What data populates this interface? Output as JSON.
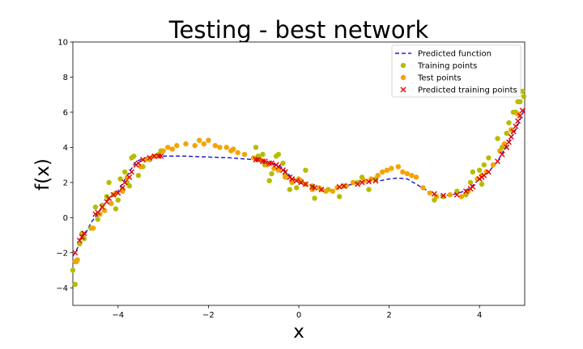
{
  "chart_data": {
    "type": "scatter",
    "title": "Testing - best network",
    "xlabel": "x",
    "ylabel": "f(x)",
    "xlim": [
      -5,
      5
    ],
    "ylim": [
      -5,
      10
    ],
    "xticks": [
      -4,
      -2,
      0,
      2,
      4
    ],
    "yticks": [
      -4,
      -2,
      0,
      2,
      4,
      6,
      8,
      10
    ],
    "xtick_labels": [
      "−4",
      "−2",
      "0",
      "2",
      "4"
    ],
    "ytick_labels": [
      "−4",
      "−2",
      "0",
      "2",
      "4",
      "6",
      "8",
      "10"
    ],
    "grid": false,
    "legend_position": "top-right",
    "series": [
      {
        "name": "Predicted function",
        "kind": "dashed-line",
        "color": "#1f1fd6",
        "x": [
          -5.0,
          -4.8,
          -4.6,
          -4.4,
          -4.2,
          -4.0,
          -3.8,
          -3.6,
          -3.4,
          -3.2,
          -3.0,
          -2.5,
          -2.0,
          -1.5,
          -1.0,
          -0.8,
          -0.6,
          -0.4,
          -0.2,
          0.0,
          0.2,
          0.4,
          0.6,
          0.8,
          1.0,
          1.2,
          1.4,
          1.6,
          1.8,
          2.0,
          2.2,
          2.4,
          2.6,
          2.8,
          3.0,
          3.2,
          3.4,
          3.6,
          3.8,
          4.0,
          4.2,
          4.4,
          4.6,
          4.8,
          5.0
        ],
        "y": [
          -2.2,
          -1.3,
          -0.3,
          0.4,
          1.1,
          1.5,
          2.4,
          3.2,
          3.4,
          3.5,
          3.5,
          3.5,
          3.45,
          3.4,
          3.3,
          3.2,
          3.1,
          2.9,
          2.4,
          2.0,
          1.8,
          1.7,
          1.55,
          1.6,
          1.8,
          1.9,
          2.0,
          2.05,
          2.1,
          2.2,
          2.25,
          2.2,
          1.9,
          1.6,
          1.3,
          1.25,
          1.3,
          1.45,
          1.7,
          2.2,
          2.6,
          3.2,
          4.1,
          5.0,
          6.2
        ]
      },
      {
        "name": "Training points",
        "kind": "scatter",
        "color": "#b5bd00",
        "x": [
          -5.0,
          -4.95,
          -4.92,
          -4.85,
          -4.8,
          -4.75,
          -4.6,
          -4.5,
          -4.45,
          -4.35,
          -4.25,
          -4.2,
          -4.1,
          -4.05,
          -4.0,
          -3.95,
          -3.9,
          -3.85,
          -3.8,
          -3.75,
          -3.7,
          -3.65,
          -3.55,
          -3.45,
          -3.3,
          -3.1,
          -3.05,
          -0.95,
          -0.9,
          -0.8,
          -0.75,
          -0.65,
          -0.6,
          -0.5,
          -0.45,
          -0.35,
          -0.3,
          -0.2,
          -0.15,
          -0.05,
          0.05,
          0.15,
          0.3,
          0.35,
          0.5,
          0.65,
          0.9,
          1.0,
          1.3,
          1.4,
          1.55,
          1.7,
          3.0,
          3.2,
          3.5,
          3.7,
          3.8,
          3.85,
          4.0,
          4.05,
          4.1,
          4.2,
          4.4,
          4.5,
          4.6,
          4.65,
          4.7,
          4.75,
          4.8,
          4.85,
          4.9,
          4.95
        ],
        "y": [
          -3.0,
          -3.8,
          -2.5,
          -1.5,
          -0.9,
          -1.2,
          -0.6,
          0.6,
          -0.1,
          0.7,
          1.2,
          2.0,
          1.3,
          0.5,
          1.0,
          2.2,
          1.6,
          2.6,
          2.0,
          1.8,
          3.4,
          3.5,
          2.4,
          2.9,
          3.3,
          3.6,
          3.8,
          4.0,
          3.5,
          3.6,
          3.0,
          2.1,
          2.5,
          3.5,
          3.6,
          3.1,
          2.4,
          1.6,
          2.0,
          1.7,
          2.1,
          2.7,
          1.8,
          1.1,
          1.6,
          1.6,
          1.2,
          1.8,
          2.0,
          2.3,
          1.6,
          2.2,
          1.0,
          1.2,
          1.5,
          1.3,
          2.0,
          2.6,
          2.7,
          1.9,
          3.0,
          3.4,
          4.5,
          4.0,
          4.8,
          5.4,
          5.0,
          6.0,
          6.0,
          6.6,
          6.6,
          7.2
        ],
        "x_more": [
          4.98
        ],
        "y_more": [
          6.9
        ]
      },
      {
        "name": "Test points",
        "kind": "scatter",
        "color": "#f5a300",
        "x": [
          -4.95,
          -4.9,
          -4.55,
          -4.4,
          -4.3,
          -4.15,
          -4.05,
          -3.9,
          -3.8,
          -3.5,
          -3.4,
          -3.3,
          -3.2,
          -3.0,
          -2.9,
          -2.8,
          -2.7,
          -2.5,
          -2.3,
          -2.2,
          -2.1,
          -2.0,
          -1.85,
          -1.75,
          -1.6,
          -1.5,
          -1.45,
          -1.35,
          -1.2,
          -1.0,
          -0.85,
          -0.7,
          -0.55,
          -0.45,
          -0.3,
          -0.15,
          0.0,
          0.15,
          0.3,
          0.45,
          0.6,
          0.75,
          0.85,
          1.05,
          1.2,
          1.45,
          1.6,
          1.75,
          1.85,
          1.95,
          2.05,
          2.2,
          2.3,
          2.4,
          2.5,
          2.6,
          2.75,
          2.9,
          3.05,
          3.35,
          3.6,
          3.75,
          3.95,
          4.05,
          4.15,
          4.3,
          4.45,
          4.55,
          4.7,
          4.85
        ],
        "y": [
          -2.5,
          -2.4,
          -0.6,
          0.2,
          0.4,
          0.8,
          1.4,
          1.5,
          2.3,
          2.9,
          3.3,
          3.4,
          3.5,
          3.8,
          4.0,
          3.9,
          4.1,
          4.2,
          4.1,
          4.4,
          4.2,
          4.4,
          4.1,
          4.0,
          4.0,
          3.8,
          3.9,
          3.7,
          3.6,
          3.4,
          3.3,
          3.0,
          2.8,
          2.7,
          2.3,
          2.1,
          2.2,
          1.9,
          1.6,
          1.7,
          1.5,
          1.5,
          1.7,
          1.8,
          2.0,
          2.1,
          2.2,
          2.4,
          2.6,
          2.7,
          2.8,
          2.9,
          2.6,
          2.5,
          2.4,
          2.3,
          1.7,
          1.4,
          1.2,
          1.3,
          1.2,
          1.5,
          2.2,
          2.4,
          2.6,
          3.0,
          3.8,
          4.2,
          5.0,
          5.9
        ]
      },
      {
        "name": "Predicted training points",
        "kind": "x-marker",
        "color": "#e00000",
        "x": [
          -4.95,
          -4.85,
          -4.8,
          -4.75,
          -4.5,
          -4.45,
          -4.35,
          -4.25,
          -4.2,
          -4.1,
          -4.0,
          -3.9,
          -3.85,
          -3.75,
          -3.7,
          -3.6,
          -3.55,
          -3.45,
          -3.3,
          -3.2,
          -3.1,
          -3.05,
          -0.95,
          -0.9,
          -0.8,
          -0.75,
          -0.65,
          -0.6,
          -0.5,
          -0.45,
          -0.35,
          -0.3,
          -0.2,
          -0.15,
          -0.05,
          0.05,
          0.15,
          0.3,
          0.35,
          0.5,
          0.9,
          1.0,
          1.3,
          1.4,
          1.55,
          1.7,
          3.0,
          3.2,
          3.5,
          3.7,
          3.8,
          3.85,
          4.0,
          4.05,
          4.1,
          4.2,
          4.4,
          4.5,
          4.6,
          4.65,
          4.7,
          4.75,
          4.8,
          4.85,
          4.9,
          4.95
        ],
        "y": [
          -2.0,
          -1.3,
          -1.1,
          -0.9,
          0.2,
          0.3,
          0.6,
          0.9,
          1.1,
          1.3,
          1.4,
          1.7,
          2.0,
          2.3,
          2.6,
          3.0,
          3.1,
          3.3,
          3.4,
          3.5,
          3.5,
          3.5,
          3.3,
          3.3,
          3.2,
          3.2,
          3.1,
          3.1,
          3.0,
          2.9,
          2.7,
          2.6,
          2.3,
          2.2,
          2.1,
          2.0,
          1.9,
          1.75,
          1.7,
          1.6,
          1.75,
          1.8,
          1.9,
          2.0,
          2.05,
          2.1,
          1.35,
          1.25,
          1.3,
          1.5,
          1.65,
          1.75,
          2.2,
          2.3,
          2.4,
          2.6,
          3.2,
          3.6,
          4.0,
          4.3,
          4.6,
          4.9,
          5.2,
          5.5,
          5.8,
          6.1
        ]
      }
    ]
  }
}
